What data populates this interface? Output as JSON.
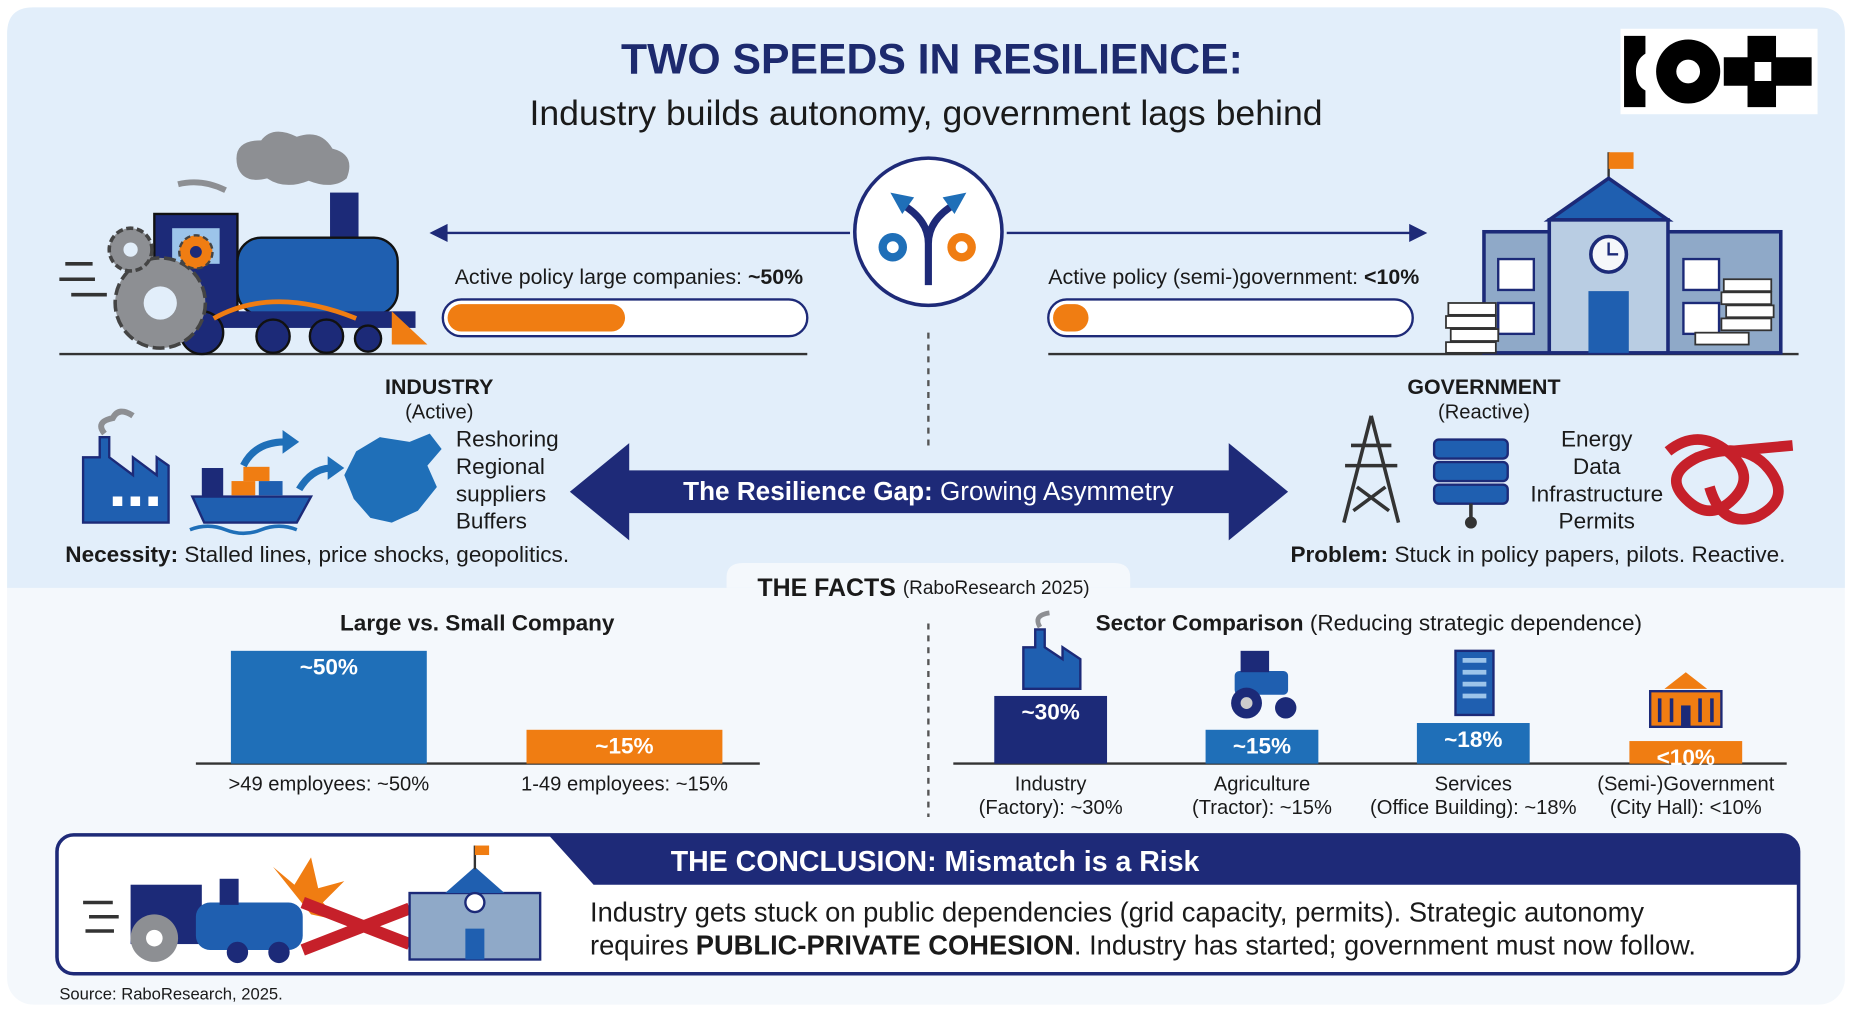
{
  "header": {
    "title": "TWO SPEEDS IN RESILIENCE:",
    "subtitle": "Industry builds autonomy, government lags behind"
  },
  "progress": {
    "xlim": [
      0,
      100
    ],
    "items": [
      {
        "label": "Active policy large companies:",
        "value_label": "~50%",
        "value": 50,
        "color": "#f07d12"
      },
      {
        "label": "Active policy (semi-)government:",
        "value_label": "<10%",
        "value": 10,
        "color": "#f07d12"
      }
    ]
  },
  "industry": {
    "title": "INDUSTRY",
    "subtitle": "(Active)",
    "items": [
      "Reshoring",
      "Regional",
      "suppliers",
      "Buffers"
    ],
    "note_label": "Necessity:",
    "note": "Stalled lines, price shocks, geopolitics."
  },
  "gap": {
    "label": "The Resilience Gap:",
    "text": "Growing Asymmetry"
  },
  "government": {
    "title": "GOVERNMENT",
    "subtitle": "(Reactive)",
    "items": [
      "Energy",
      "Data",
      "Infrastructure",
      "Permits"
    ],
    "note_label": "Problem:",
    "note": "Stuck in policy papers, pilots. Reactive."
  },
  "facts": {
    "title": "THE FACTS",
    "source": "(RaboResearch 2025)"
  },
  "company_chart": {
    "title": "Large vs. Small Company",
    "bars": [
      {
        "value": 50,
        "value_label": "~50%",
        "label_lines": [
          ">49 employees: ~50%"
        ],
        "color": "#1f6fb8"
      },
      {
        "value": 15,
        "value_label": "~15%",
        "label_lines": [
          "1-49 employees: ~15%"
        ],
        "color": "#f07d12"
      }
    ]
  },
  "sector_chart": {
    "title": "Sector Comparison",
    "subtitle": "(Reducing strategic dependence)",
    "bars": [
      {
        "value": 30,
        "value_label": "~30%",
        "label_lines": [
          "Industry",
          "(Factory): ~30%"
        ],
        "color": "#1c2a78"
      },
      {
        "value": 15,
        "value_label": "~15%",
        "label_lines": [
          "Agriculture",
          "(Tractor): ~15%"
        ],
        "color": "#1f6fb8"
      },
      {
        "value": 18,
        "value_label": "~18%",
        "label_lines": [
          "Services",
          "(Office Building): ~18%"
        ],
        "color": "#1f6fb8"
      },
      {
        "value": 10,
        "value_label": "<10%",
        "label_lines": [
          "(Semi-)Government",
          "(City Hall): <10%"
        ],
        "color": "#f07d12"
      }
    ]
  },
  "conclusion": {
    "title": "THE CONCLUSION: Mismatch is a Risk",
    "line_1": "Industry gets stuck on public dependencies (grid capacity, permits). Strategic autonomy",
    "line_2_start": "requires",
    "emphasis": "PUBLIC-PRIVATE COHESION",
    "line_2_end": ". Industry has started; government must now follow."
  },
  "source": "Source: RaboResearch, 2025."
}
